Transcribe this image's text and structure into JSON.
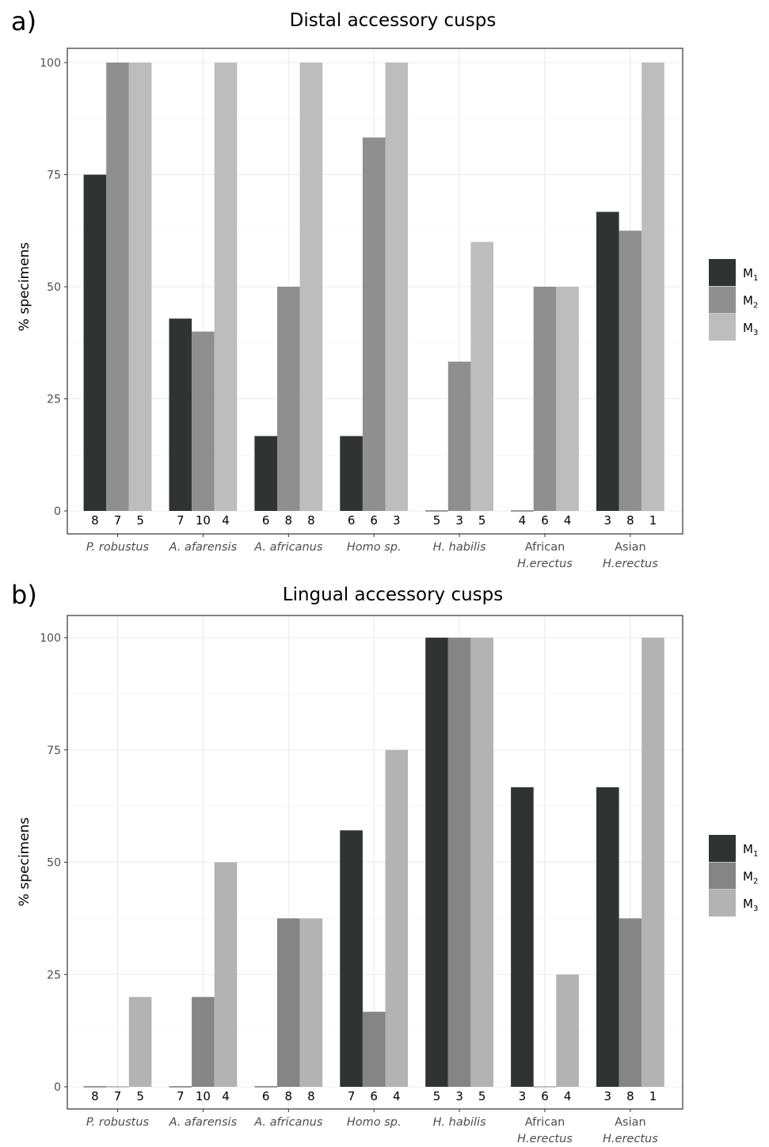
{
  "chart_data": [
    {
      "type": "bar",
      "panel_label": "a)",
      "title": "Distal accessory cusps",
      "ylabel": "% specimens",
      "xlabel": "",
      "ylim": [
        0,
        100
      ],
      "yticks": [
        "0",
        "25",
        "50",
        "75",
        "100"
      ],
      "categories": [
        {
          "lines": [
            "P. robustus"
          ],
          "italic": true
        },
        {
          "lines": [
            "A. afarensis"
          ],
          "italic": true
        },
        {
          "lines": [
            "A. africanus"
          ],
          "italic": true
        },
        {
          "lines": [
            "Homo sp."
          ],
          "italic": true
        },
        {
          "lines": [
            "H. habilis"
          ],
          "italic": true
        },
        {
          "lines": [
            "African",
            "H.erectus"
          ],
          "italic": [
            false,
            true
          ]
        },
        {
          "lines": [
            "Asian",
            "H.erectus"
          ],
          "italic": [
            false,
            true
          ]
        }
      ],
      "series": [
        {
          "name": "M1",
          "color": "#313333",
          "values": [
            75,
            42.9,
            16.7,
            16.7,
            0,
            0,
            66.7
          ],
          "n": [
            "8",
            "7",
            "6",
            "6",
            "5",
            "4",
            "3"
          ]
        },
        {
          "name": "M2",
          "color": "#8f8f8f",
          "values": [
            100,
            40,
            50,
            83.3,
            33.3,
            50,
            62.5
          ],
          "n": [
            "7",
            "10",
            "8",
            "6",
            "3",
            "6",
            "8"
          ]
        },
        {
          "name": "M3",
          "color": "#bdbdbd",
          "values": [
            100,
            100,
            100,
            100,
            60,
            50,
            100
          ],
          "n": [
            "5",
            "4",
            "8",
            "3",
            "5",
            "4",
            "1"
          ]
        }
      ],
      "legend": {
        "position": "right",
        "entries": [
          {
            "main": "M",
            "sub": "1"
          },
          {
            "main": "M",
            "sub": "2"
          },
          {
            "main": "M",
            "sub": "3"
          }
        ]
      },
      "grid": true
    },
    {
      "type": "bar",
      "panel_label": "b)",
      "title": "Lingual accessory cusps",
      "ylabel": "% specimens",
      "xlabel": "",
      "ylim": [
        0,
        100
      ],
      "yticks": [
        "0",
        "25",
        "50",
        "75",
        "100"
      ],
      "categories": [
        {
          "lines": [
            "P. robustus"
          ],
          "italic": true
        },
        {
          "lines": [
            "A. afarensis"
          ],
          "italic": true
        },
        {
          "lines": [
            "A. africanus"
          ],
          "italic": true
        },
        {
          "lines": [
            "Homo sp."
          ],
          "italic": true
        },
        {
          "lines": [
            "H. habilis"
          ],
          "italic": true
        },
        {
          "lines": [
            "African",
            "H.erectus"
          ],
          "italic": [
            false,
            true
          ]
        },
        {
          "lines": [
            "Asian",
            "H.erectus"
          ],
          "italic": [
            false,
            true
          ]
        }
      ],
      "series": [
        {
          "name": "M1",
          "color": "#313333",
          "values": [
            0,
            0,
            0,
            57.1,
            100,
            66.7,
            66.7
          ],
          "n": [
            "8",
            "7",
            "6",
            "7",
            "5",
            "3",
            "3"
          ]
        },
        {
          "name": "M2",
          "color": "#858585",
          "values": [
            0,
            20,
            37.5,
            16.7,
            100,
            0,
            37.5
          ],
          "n": [
            "7",
            "10",
            "8",
            "6",
            "3",
            "6",
            "8"
          ]
        },
        {
          "name": "M3",
          "color": "#b3b3b3",
          "values": [
            20,
            50,
            37.5,
            75,
            100,
            25,
            100
          ],
          "n": [
            "5",
            "4",
            "8",
            "4",
            "5",
            "4",
            "1"
          ]
        }
      ],
      "legend": {
        "position": "right",
        "entries": [
          {
            "main": "M",
            "sub": "1"
          },
          {
            "main": "M",
            "sub": "2"
          },
          {
            "main": "M",
            "sub": "3"
          }
        ]
      },
      "grid": true
    }
  ]
}
